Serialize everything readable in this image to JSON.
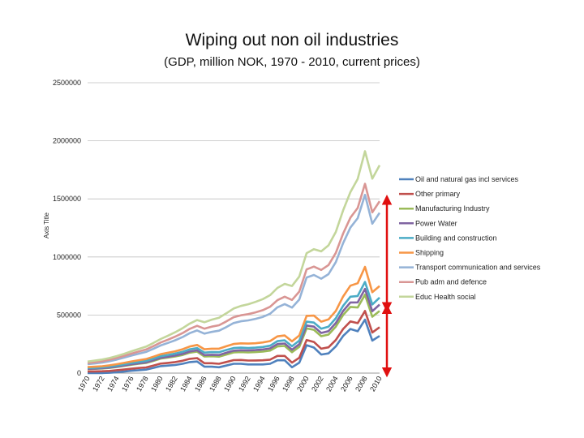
{
  "chart_data": {
    "type": "line",
    "title": "Wiping out non oil industries",
    "subtitle": "(GDP, million NOK, 1970 - 2010, current prices)",
    "ylabel": "Axis Title",
    "xlabel": "",
    "ylim": [
      0,
      2500000
    ],
    "yticks": [
      0,
      500000,
      1000000,
      1500000,
      2000000,
      2500000
    ],
    "ytick_labels": [
      "0",
      "500000",
      "1000000",
      "1500000",
      "2000000",
      "2500000"
    ],
    "xtick_labels": [
      "1970",
      "1972",
      "1974",
      "1976",
      "1978",
      "1980",
      "1982",
      "1984",
      "1986",
      "1988",
      "1990",
      "1992",
      "1994",
      "1996",
      "1998",
      "2000",
      "2002",
      "2004",
      "2006",
      "2008",
      "2010"
    ],
    "x": [
      1970,
      1971,
      1972,
      1973,
      1974,
      1975,
      1976,
      1977,
      1978,
      1979,
      1980,
      1981,
      1982,
      1983,
      1984,
      1985,
      1986,
      1987,
      1988,
      1989,
      1990,
      1991,
      1992,
      1993,
      1994,
      1995,
      1996,
      1997,
      1998,
      1999,
      2000,
      2001,
      2002,
      2003,
      2004,
      2005,
      2006,
      2007,
      2008,
      2009,
      2010
    ],
    "stacked": true,
    "series": [
      {
        "name": "Oil and natural gas incl services",
        "color": "#4F81BD",
        "values": [
          0,
          0,
          1000,
          3000,
          8000,
          13000,
          20000,
          25000,
          30000,
          45000,
          60000,
          65000,
          70000,
          80000,
          95000,
          100000,
          55000,
          55000,
          50000,
          65000,
          80000,
          80000,
          75000,
          75000,
          75000,
          80000,
          110000,
          110000,
          50000,
          90000,
          240000,
          220000,
          160000,
          170000,
          230000,
          320000,
          380000,
          360000,
          460000,
          280000,
          320000
        ]
      },
      {
        "name": "Other primary",
        "color": "#C0504D",
        "values": [
          15000,
          15000,
          15000,
          16000,
          17000,
          18000,
          18000,
          19000,
          19000,
          20000,
          22000,
          23000,
          25000,
          26000,
          28000,
          29000,
          30000,
          30000,
          30000,
          31000,
          32000,
          33000,
          33000,
          34000,
          35000,
          36000,
          38000,
          38000,
          40000,
          42000,
          45000,
          48000,
          50000,
          52000,
          55000,
          60000,
          65000,
          70000,
          75000,
          70000,
          75000
        ]
      },
      {
        "name": "Manufacturing Industry",
        "color": "#9BBB59",
        "values": [
          20000,
          22000,
          24000,
          26000,
          28000,
          31000,
          34000,
          36000,
          38000,
          40000,
          43000,
          46000,
          48000,
          50000,
          53000,
          56000,
          58000,
          60000,
          62000,
          64000,
          66000,
          68000,
          70000,
          72000,
          75000,
          78000,
          82000,
          86000,
          90000,
          94000,
          100000,
          105000,
          108000,
          110000,
          115000,
          120000,
          125000,
          135000,
          140000,
          135000,
          140000
        ]
      },
      {
        "name": "Power Water",
        "color": "#8064A2",
        "values": [
          2000,
          2200,
          2500,
          2800,
          3000,
          3500,
          4000,
          4500,
          5000,
          5500,
          6000,
          7000,
          8000,
          9000,
          10000,
          11000,
          12000,
          13000,
          14000,
          15000,
          15000,
          16000,
          17000,
          17000,
          18000,
          19000,
          20000,
          21000,
          22000,
          23000,
          25000,
          27000,
          28000,
          29000,
          31000,
          34000,
          38000,
          44000,
          50000,
          48000,
          55000
        ]
      },
      {
        "name": "Building and construction",
        "color": "#4BACC6",
        "values": [
          6000,
          6600,
          7200,
          8000,
          8800,
          9600,
          10500,
          11500,
          12500,
          13500,
          14000,
          15000,
          17000,
          18000,
          19000,
          20000,
          22000,
          23000,
          24000,
          24000,
          23000,
          22000,
          21000,
          21000,
          22000,
          23000,
          25000,
          27000,
          29000,
          31000,
          33000,
          35000,
          37000,
          39000,
          41000,
          45000,
          50000,
          55000,
          60000,
          58000,
          60000
        ]
      },
      {
        "name": "Shipping",
        "color": "#F79646",
        "values": [
          9000,
          9500,
          10000,
          11000,
          12000,
          13000,
          14000,
          15000,
          16000,
          17000,
          18000,
          19000,
          20000,
          22000,
          24000,
          26000,
          28000,
          29000,
          30000,
          32000,
          35000,
          37000,
          38000,
          38000,
          39000,
          40000,
          41000,
          42000,
          43000,
          44000,
          50000,
          60000,
          60000,
          62000,
          63000,
          80000,
          95000,
          110000,
          130000,
          105000,
          100000
        ]
      },
      {
        "name": "Transport communication and services",
        "color": "#95B3D7",
        "values": [
          25000,
          28000,
          31000,
          35000,
          40000,
          45000,
          50000,
          56000,
          62000,
          68000,
          75000,
          85000,
          95000,
          105000,
          115000,
          125000,
          135000,
          145000,
          155000,
          165000,
          180000,
          190000,
          200000,
          210000,
          220000,
          235000,
          250000,
          270000,
          290000,
          310000,
          330000,
          350000,
          370000,
          390000,
          420000,
          460000,
          500000,
          560000,
          620000,
          590000,
          630000
        ]
      },
      {
        "name": "Pub adm and defence",
        "color": "#D99694",
        "values": [
          10000,
          11000,
          12000,
          13000,
          14000,
          15000,
          17000,
          19000,
          21000,
          23000,
          25000,
          28000,
          31000,
          34000,
          37000,
          40000,
          43000,
          45000,
          47000,
          49000,
          50000,
          52000,
          54000,
          56000,
          58000,
          60000,
          62000,
          64000,
          66000,
          68000,
          70000,
          72000,
          75000,
          78000,
          80000,
          82000,
          85000,
          88000,
          95000,
          98000,
          100000
        ]
      },
      {
        "name": "Educ Health social",
        "color": "#C3D69B",
        "values": [
          12000,
          13000,
          14000,
          15000,
          16000,
          18000,
          20000,
          22000,
          24000,
          27000,
          30000,
          34000,
          38000,
          42000,
          46000,
          50000,
          55000,
          60000,
          65000,
          70000,
          75000,
          80000,
          85000,
          90000,
          95000,
          100000,
          105000,
          110000,
          120000,
          130000,
          140000,
          150000,
          160000,
          170000,
          180000,
          200000,
          220000,
          250000,
          280000,
          290000,
          310000
        ]
      }
    ],
    "annotations": [
      {
        "type": "double-arrow",
        "color": "#E01010",
        "x": 2011,
        "y_from": 0,
        "y_to": 560000
      },
      {
        "type": "double-arrow",
        "color": "#E01010",
        "x": 2011,
        "y_from": 560000,
        "y_to": 1500000
      }
    ]
  }
}
